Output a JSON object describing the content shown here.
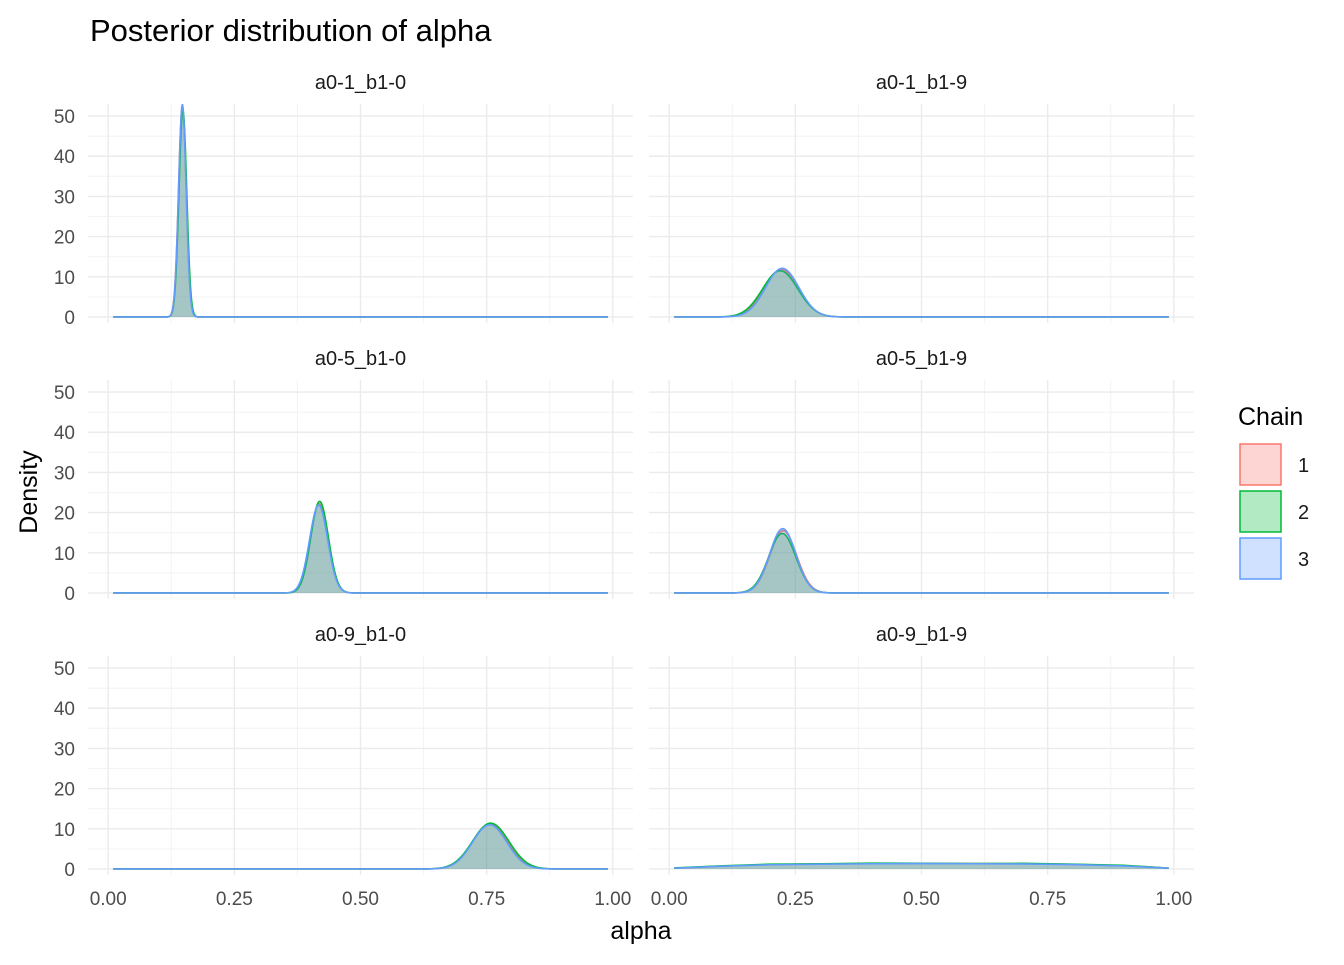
{
  "chart_data": {
    "type": "area",
    "title": "Posterior distribution of alpha",
    "xlabel": "alpha",
    "ylabel": "Density",
    "xlim": [
      -0.04,
      1.04
    ],
    "ylim": [
      -1.5,
      53
    ],
    "x_ticks": [
      0,
      0.25,
      0.5,
      0.75,
      1
    ],
    "x_tick_labels": [
      "0.00",
      "0.25",
      "0.50",
      "0.75",
      "1.00"
    ],
    "y_ticks": [
      0,
      10,
      20,
      30,
      40,
      50
    ],
    "y_tick_labels": [
      "0",
      "10",
      "20",
      "30",
      "40",
      "50"
    ],
    "grid": true,
    "legend": {
      "title": "Chain",
      "position": "right",
      "entries": [
        {
          "label": "1",
          "line": "#F8766D",
          "fill": "#F8766D"
        },
        {
          "label": "2",
          "line": "#00BA38",
          "fill": "#00BA38"
        },
        {
          "label": "3",
          "line": "#619CFF",
          "fill": "#619CFF"
        }
      ]
    },
    "x_range": [
      0.01,
      0.99
    ],
    "panels": [
      {
        "label": "a0-1_b1-0",
        "kind": "normal",
        "series": [
          {
            "chain": "1",
            "mean": 0.147,
            "sd": 0.0076,
            "peak": 52.5
          },
          {
            "chain": "2",
            "mean": 0.148,
            "sd": 0.0077,
            "peak": 51.5
          },
          {
            "chain": "3",
            "mean": 0.147,
            "sd": 0.0075,
            "peak": 53.0
          }
        ]
      },
      {
        "label": "a0-1_b1-9",
        "kind": "normal",
        "series": [
          {
            "chain": "1",
            "mean": 0.222,
            "sd": 0.034,
            "peak": 11.8
          },
          {
            "chain": "2",
            "mean": 0.22,
            "sd": 0.035,
            "peak": 11.5
          },
          {
            "chain": "3",
            "mean": 0.224,
            "sd": 0.033,
            "peak": 12.1
          }
        ]
      },
      {
        "label": "a0-5_b1-0",
        "kind": "normal",
        "series": [
          {
            "chain": "1",
            "mean": 0.418,
            "sd": 0.0178,
            "peak": 22.2
          },
          {
            "chain": "2",
            "mean": 0.419,
            "sd": 0.0175,
            "peak": 22.8
          },
          {
            "chain": "3",
            "mean": 0.417,
            "sd": 0.018,
            "peak": 21.9
          }
        ]
      },
      {
        "label": "a0-5_b1-9",
        "kind": "normal",
        "series": [
          {
            "chain": "1",
            "mean": 0.226,
            "sd": 0.0265,
            "peak": 15.5
          },
          {
            "chain": "2",
            "mean": 0.224,
            "sd": 0.027,
            "peak": 14.8
          },
          {
            "chain": "3",
            "mean": 0.225,
            "sd": 0.026,
            "peak": 16.0
          }
        ]
      },
      {
        "label": "a0-9_b1-0",
        "kind": "normal",
        "series": [
          {
            "chain": "1",
            "mean": 0.757,
            "sd": 0.035,
            "peak": 11.2
          },
          {
            "chain": "2",
            "mean": 0.758,
            "sd": 0.036,
            "peak": 11.4
          },
          {
            "chain": "3",
            "mean": 0.756,
            "sd": 0.034,
            "peak": 11.0
          }
        ]
      },
      {
        "label": "a0-9_b1-9",
        "kind": "flat",
        "series": [
          {
            "chain": "1",
            "points": [
              [
                0.01,
                0.2
              ],
              [
                0.1,
                0.7
              ],
              [
                0.2,
                1.1
              ],
              [
                0.3,
                1.25
              ],
              [
                0.4,
                1.35
              ],
              [
                0.5,
                1.4
              ],
              [
                0.6,
                1.35
              ],
              [
                0.7,
                1.3
              ],
              [
                0.8,
                1.15
              ],
              [
                0.9,
                0.8
              ],
              [
                0.95,
                0.5
              ],
              [
                0.99,
                0.2
              ]
            ]
          },
          {
            "chain": "2",
            "points": [
              [
                0.01,
                0.25
              ],
              [
                0.1,
                0.75
              ],
              [
                0.2,
                1.2
              ],
              [
                0.3,
                1.3
              ],
              [
                0.4,
                1.45
              ],
              [
                0.5,
                1.4
              ],
              [
                0.6,
                1.35
              ],
              [
                0.7,
                1.4
              ],
              [
                0.8,
                1.2
              ],
              [
                0.9,
                0.9
              ],
              [
                0.95,
                0.55
              ],
              [
                0.99,
                0.2
              ]
            ]
          },
          {
            "chain": "3",
            "points": [
              [
                0.01,
                0.2
              ],
              [
                0.1,
                0.65
              ],
              [
                0.2,
                1.05
              ],
              [
                0.3,
                1.2
              ],
              [
                0.4,
                1.3
              ],
              [
                0.5,
                1.35
              ],
              [
                0.6,
                1.3
              ],
              [
                0.7,
                1.25
              ],
              [
                0.8,
                1.1
              ],
              [
                0.9,
                0.75
              ],
              [
                0.95,
                0.45
              ],
              [
                0.99,
                0.2
              ]
            ]
          }
        ]
      }
    ]
  }
}
